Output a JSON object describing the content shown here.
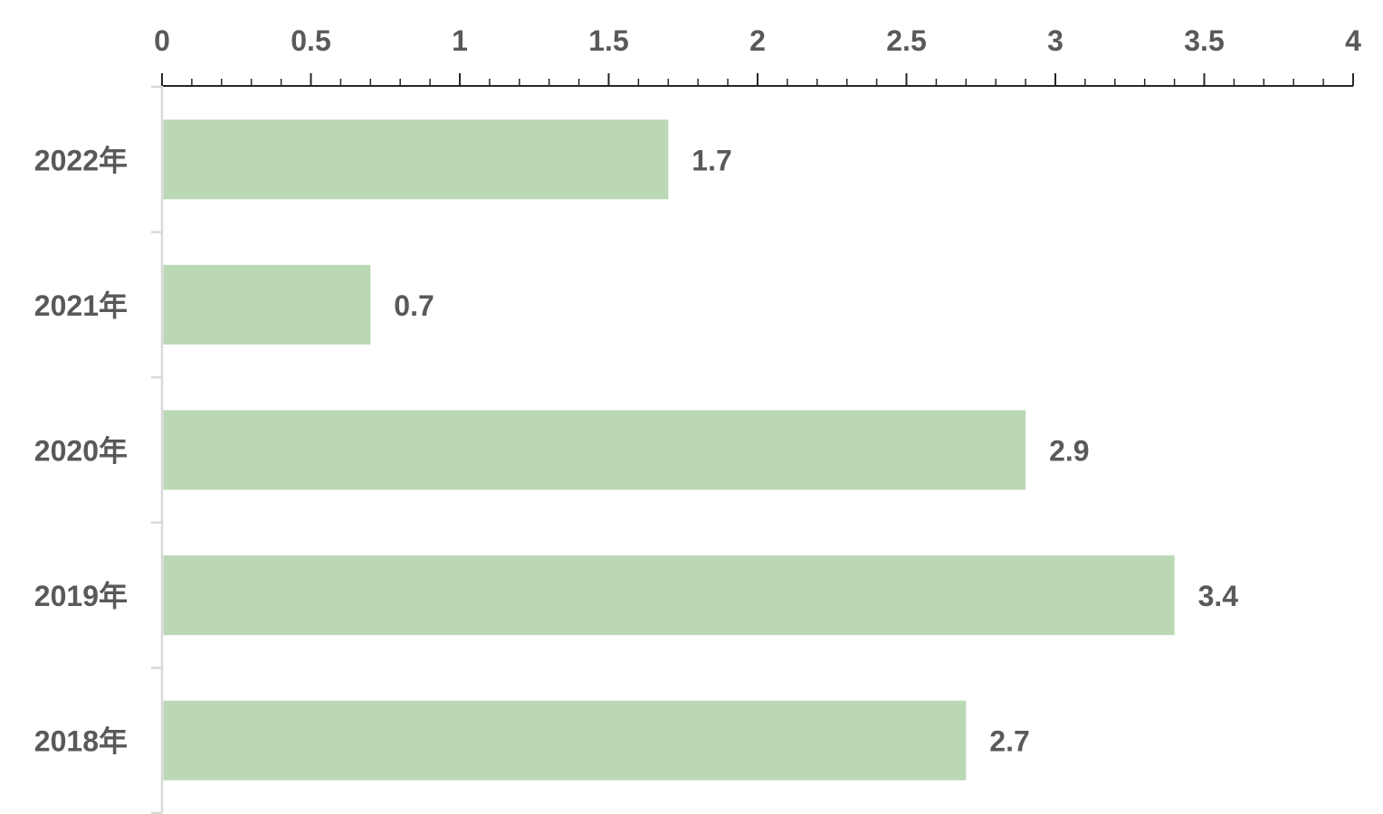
{
  "chart_data": {
    "type": "bar",
    "orientation": "horizontal",
    "categories": [
      "2022年",
      "2021年",
      "2020年",
      "2019年",
      "2018年"
    ],
    "values": [
      1.7,
      0.7,
      2.9,
      3.4,
      2.7
    ],
    "data_labels": [
      "1.7",
      "0.7",
      "2.9",
      "3.4",
      "2.7"
    ],
    "title": "",
    "xlabel": "",
    "ylabel": "",
    "xlim": [
      0,
      4
    ],
    "x_ticks": [
      0,
      0.5,
      1,
      1.5,
      2,
      2.5,
      3,
      3.5,
      4
    ],
    "x_tick_labels": [
      "0",
      "0.5",
      "1",
      "1.5",
      "2",
      "2.5",
      "3",
      "3.5",
      "4"
    ],
    "x_axis_position": "top",
    "grid": false,
    "legend": "none",
    "colors": {
      "bar": "#b9d8b3",
      "axis": "#262626",
      "category_axis": "#d9d9d9",
      "text": "#595959"
    }
  }
}
